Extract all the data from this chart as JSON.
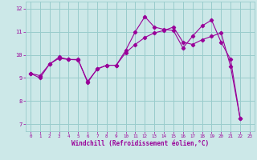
{
  "xlabel": "Windchill (Refroidissement éolien,°C)",
  "bg_color": "#cce8e8",
  "line_color": "#990099",
  "grid_color": "#99cccc",
  "xlim": [
    -0.5,
    23.5
  ],
  "ylim": [
    6.7,
    12.3
  ],
  "xticks": [
    0,
    1,
    2,
    3,
    4,
    5,
    6,
    7,
    8,
    9,
    10,
    11,
    12,
    13,
    14,
    15,
    16,
    17,
    18,
    19,
    20,
    21,
    22,
    23
  ],
  "yticks": [
    7,
    8,
    9,
    10,
    11,
    12
  ],
  "line1_x": [
    0,
    1,
    2,
    3,
    4,
    5,
    6,
    7,
    8,
    9,
    10,
    11,
    12,
    13,
    14,
    15,
    16,
    17,
    18,
    19,
    20,
    21,
    22
  ],
  "line1_y": [
    9.2,
    9.0,
    9.6,
    9.9,
    9.8,
    9.8,
    8.8,
    9.4,
    9.55,
    9.55,
    10.2,
    11.0,
    11.65,
    11.2,
    11.1,
    11.05,
    10.3,
    10.8,
    11.25,
    11.5,
    10.55,
    9.8,
    7.25
  ],
  "line2_x": [
    0,
    1,
    2,
    3,
    4,
    5,
    6,
    7,
    8,
    9,
    10,
    11,
    12,
    13,
    14,
    15,
    16,
    17,
    18,
    19,
    20,
    21,
    22
  ],
  "line2_y": [
    9.2,
    9.1,
    9.6,
    9.85,
    9.8,
    9.78,
    8.85,
    9.38,
    9.55,
    9.55,
    10.1,
    10.45,
    10.75,
    10.95,
    11.05,
    11.2,
    10.55,
    10.45,
    10.65,
    10.8,
    10.95,
    9.5,
    7.25
  ]
}
